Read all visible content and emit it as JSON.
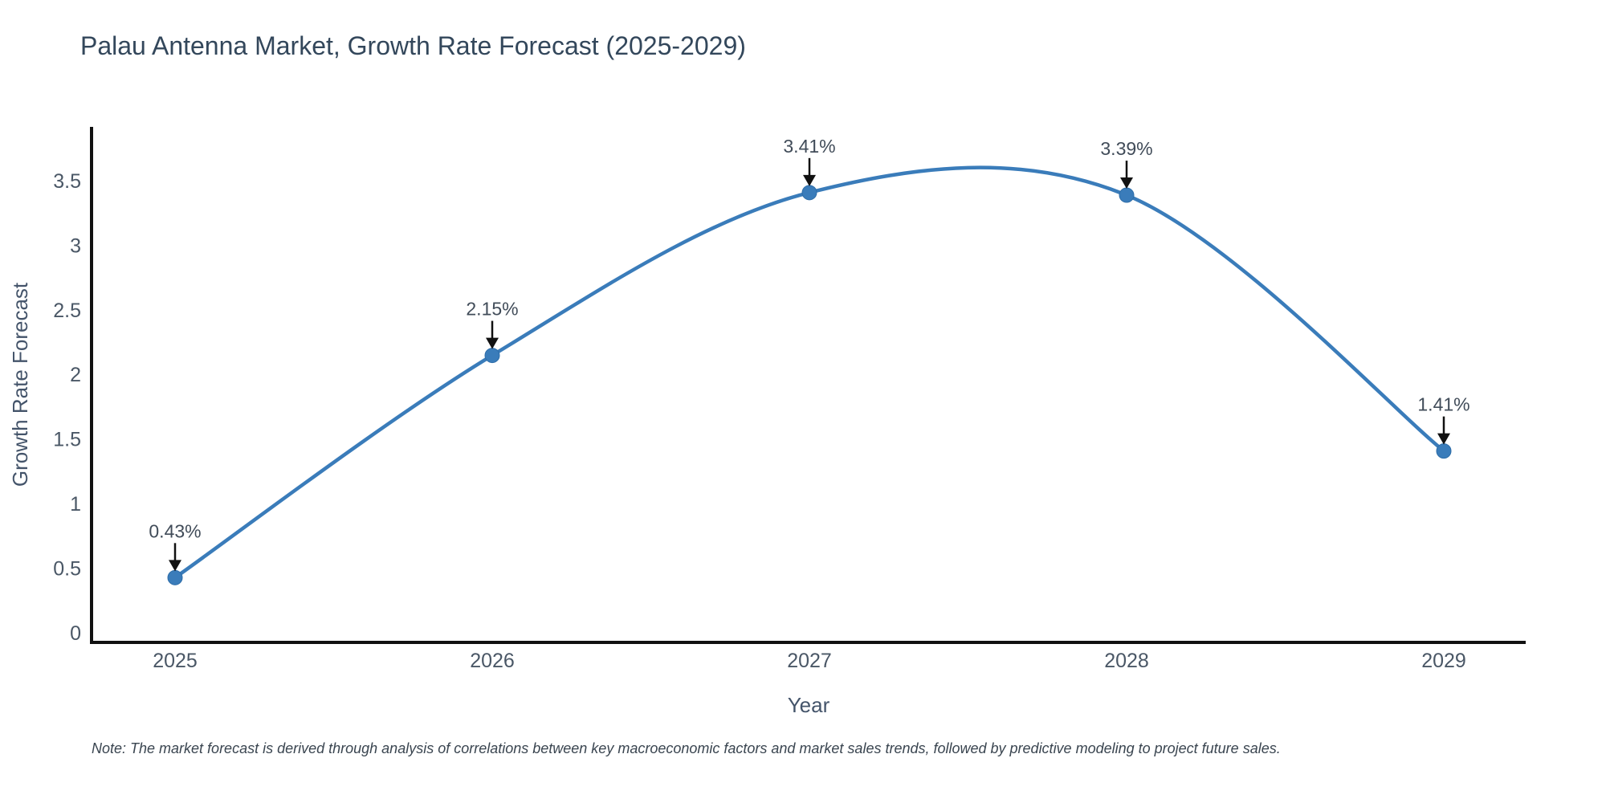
{
  "chart_data": {
    "type": "line",
    "line_shape": "spline",
    "title": "Palau Antenna Market, Growth Rate Forecast (2025-2029)",
    "xlabel": "Year",
    "ylabel": "Growth Rate Forecast",
    "note": "Note: The market forecast is derived through analysis of correlations between key macroeconomic factors and market sales trends, followed by predictive modeling to project future sales.",
    "x": [
      2025,
      2026,
      2027,
      2028,
      2029
    ],
    "x_tick_labels": [
      "2025",
      "2026",
      "2027",
      "2028",
      "2029"
    ],
    "series": [
      {
        "name": "Growth Rate Forecast",
        "values": [
          0.43,
          2.15,
          3.41,
          3.39,
          1.41
        ]
      }
    ],
    "point_labels": [
      "0.43%",
      "2.15%",
      "3.41%",
      "3.39%",
      "1.41%"
    ],
    "y_ticks": [
      0,
      0.5,
      1,
      1.5,
      2,
      2.5,
      3,
      3.5
    ],
    "y_tick_labels": [
      "0",
      "0.5",
      "1",
      "1.5",
      "2",
      "2.5",
      "3",
      "3.5"
    ],
    "ylim": [
      -0.08,
      3.92
    ],
    "grid": false,
    "legend": "none",
    "marker": "circle",
    "annotation_style": "down-arrow",
    "colors": {
      "line": "#3a7cba",
      "marker_fill": "#3a7cba",
      "marker_edge": "#2e6da8",
      "axis_line": "#111111",
      "arrow": "#111111",
      "title_text": "#33475b",
      "tick_text": "#4a5766",
      "axis_title_text": "#44546a",
      "annotation_text": "#414c59",
      "note_text": "#3a4550",
      "background": "#ffffff"
    }
  }
}
